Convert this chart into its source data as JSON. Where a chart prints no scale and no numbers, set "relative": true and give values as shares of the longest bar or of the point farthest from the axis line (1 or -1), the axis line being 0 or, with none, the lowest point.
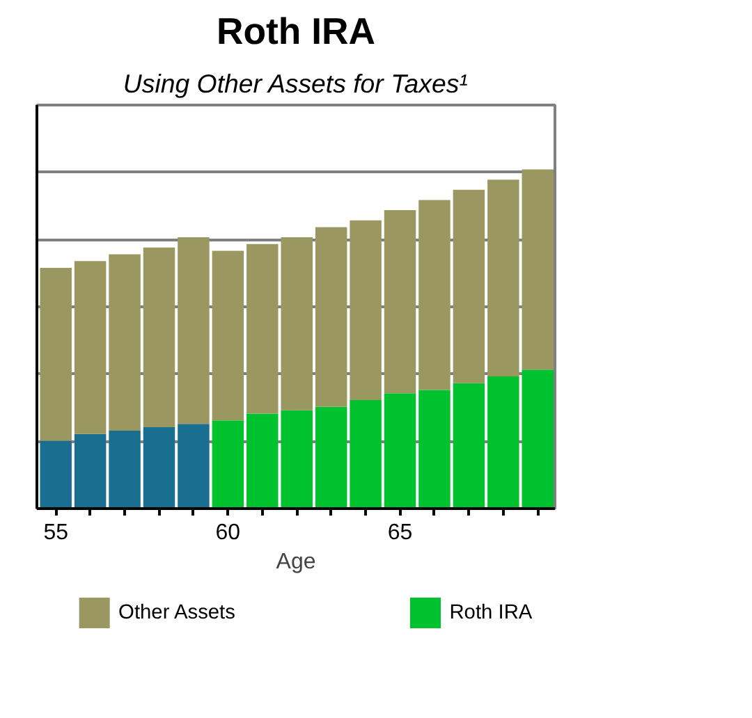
{
  "chart_data": {
    "type": "bar",
    "stacked": true,
    "relative": true,
    "title": "Roth IRA",
    "subtitle": "Using Other Assets for Taxes¹",
    "xlabel": "Age",
    "x": [
      55,
      56,
      57,
      58,
      59,
      60,
      61,
      62,
      63,
      64,
      65,
      66,
      67,
      68,
      69
    ],
    "xlim": [
      54.45,
      69.5
    ],
    "xticks": [
      55,
      {
        "value": 56,
        "label": null
      },
      {
        "value": 57,
        "label": null
      },
      {
        "value": 58,
        "label": null
      },
      {
        "value": 59,
        "label": null
      },
      60,
      {
        "value": 61,
        "label": null
      },
      {
        "value": 62,
        "label": null
      },
      {
        "value": 63,
        "label": null
      },
      {
        "value": 64,
        "label": null
      },
      65,
      {
        "value": 66,
        "label": null
      },
      {
        "value": 67,
        "label": null
      },
      {
        "value": 68,
        "label": null
      },
      {
        "value": 69,
        "label": null
      }
    ],
    "tick_labels": "x",
    "grid": "y",
    "legend": "bottom",
    "series": [
      {
        "name": "Roth IRA",
        "color": "#00c22e",
        "colors": [
          "#1a6e90",
          "#1a6e90",
          "#1a6e90",
          "#1a6e90",
          "#1a6e90",
          "#00c22e",
          "#00c22e",
          "#00c22e",
          "#00c22e",
          "#00c22e",
          "#00c22e",
          "#00c22e",
          "#00c22e",
          "#00c22e",
          "#00c22e"
        ],
        "values": [
          0.2,
          0.22,
          0.23,
          0.24,
          0.25,
          0.26,
          0.28,
          0.29,
          0.3,
          0.32,
          0.34,
          0.35,
          0.37,
          0.39,
          0.41
        ]
      },
      {
        "name": "Other Assets",
        "color": "#9a9860",
        "values": [
          0.51,
          0.51,
          0.52,
          0.53,
          0.55,
          0.5,
          0.5,
          0.51,
          0.53,
          0.53,
          0.54,
          0.56,
          0.57,
          0.58,
          0.59
        ]
      }
    ]
  }
}
